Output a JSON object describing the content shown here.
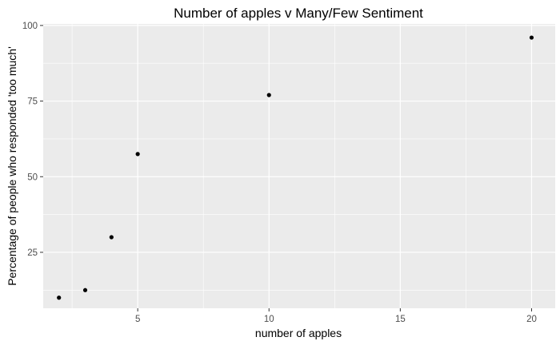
{
  "chart_data": {
    "type": "scatter",
    "title": "Number of apples v Many/Few Sentiment",
    "xlabel": "number of apples",
    "ylabel": "Percentage of people who responded 'too much'",
    "xlim": [
      1.4,
      20.9
    ],
    "ylim": [
      6.5,
      100.5
    ],
    "x_major_ticks": [
      5,
      10,
      15,
      20
    ],
    "x_minor_ticks": [
      2.5,
      7.5,
      12.5,
      17.5
    ],
    "y_major_ticks": [
      25,
      50,
      75,
      100
    ],
    "y_minor_ticks": [
      12.5,
      37.5,
      62.5,
      87.5
    ],
    "x_tick_labels": [
      "5",
      "10",
      "15",
      "20"
    ],
    "y_tick_labels": [
      "25",
      "50",
      "75",
      "100"
    ],
    "grid": true,
    "theme": "ggplot2-grey",
    "colors": {
      "panel_background": "#ebebeb",
      "grid_line": "#ffffff",
      "point": "#000000",
      "tick_label": "#4d4d4d",
      "tick_mark": "#333333"
    },
    "points": [
      {
        "x": 2,
        "y": 10
      },
      {
        "x": 3,
        "y": 12.5
      },
      {
        "x": 4,
        "y": 30
      },
      {
        "x": 5,
        "y": 57.5
      },
      {
        "x": 10,
        "y": 77
      },
      {
        "x": 20,
        "y": 96
      }
    ]
  }
}
